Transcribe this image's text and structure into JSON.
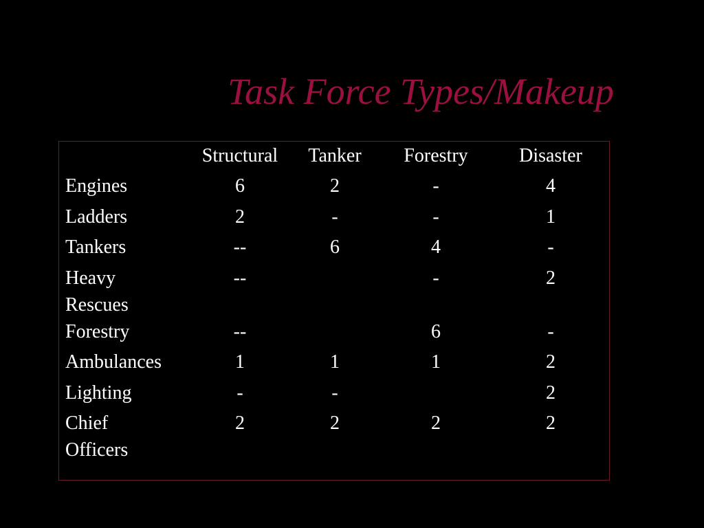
{
  "title": "Task Force Types/Makeup",
  "table": {
    "columns": [
      "Structural",
      "Tanker",
      "Forestry",
      "Disaster"
    ],
    "rows": [
      {
        "label": "Engines",
        "cells": [
          "6",
          "2",
          "-",
          "4"
        ]
      },
      {
        "label": "Ladders",
        "cells": [
          "2",
          "-",
          "-",
          "1"
        ]
      },
      {
        "label": "Tankers",
        "cells": [
          "--",
          "6",
          "4",
          "-"
        ]
      },
      {
        "label": "Heavy\nRescues",
        "cells": [
          "--",
          "",
          "-",
          "2"
        ]
      },
      {
        "label": "Forestry",
        "cells": [
          "--",
          "",
          "6",
          "-"
        ]
      },
      {
        "label": "Ambulances",
        "cells": [
          "1",
          "1",
          "1",
          "2"
        ]
      },
      {
        "label": "Lighting",
        "cells": [
          "-",
          "-",
          "",
          "2"
        ]
      },
      {
        "label": "Chief\nOfficers",
        "cells": [
          "2",
          "2",
          "2",
          "2"
        ]
      }
    ]
  },
  "colors": {
    "title": "#9c1040",
    "border": "#6a1a2a",
    "background": "#000000",
    "text": "#ffffff"
  }
}
